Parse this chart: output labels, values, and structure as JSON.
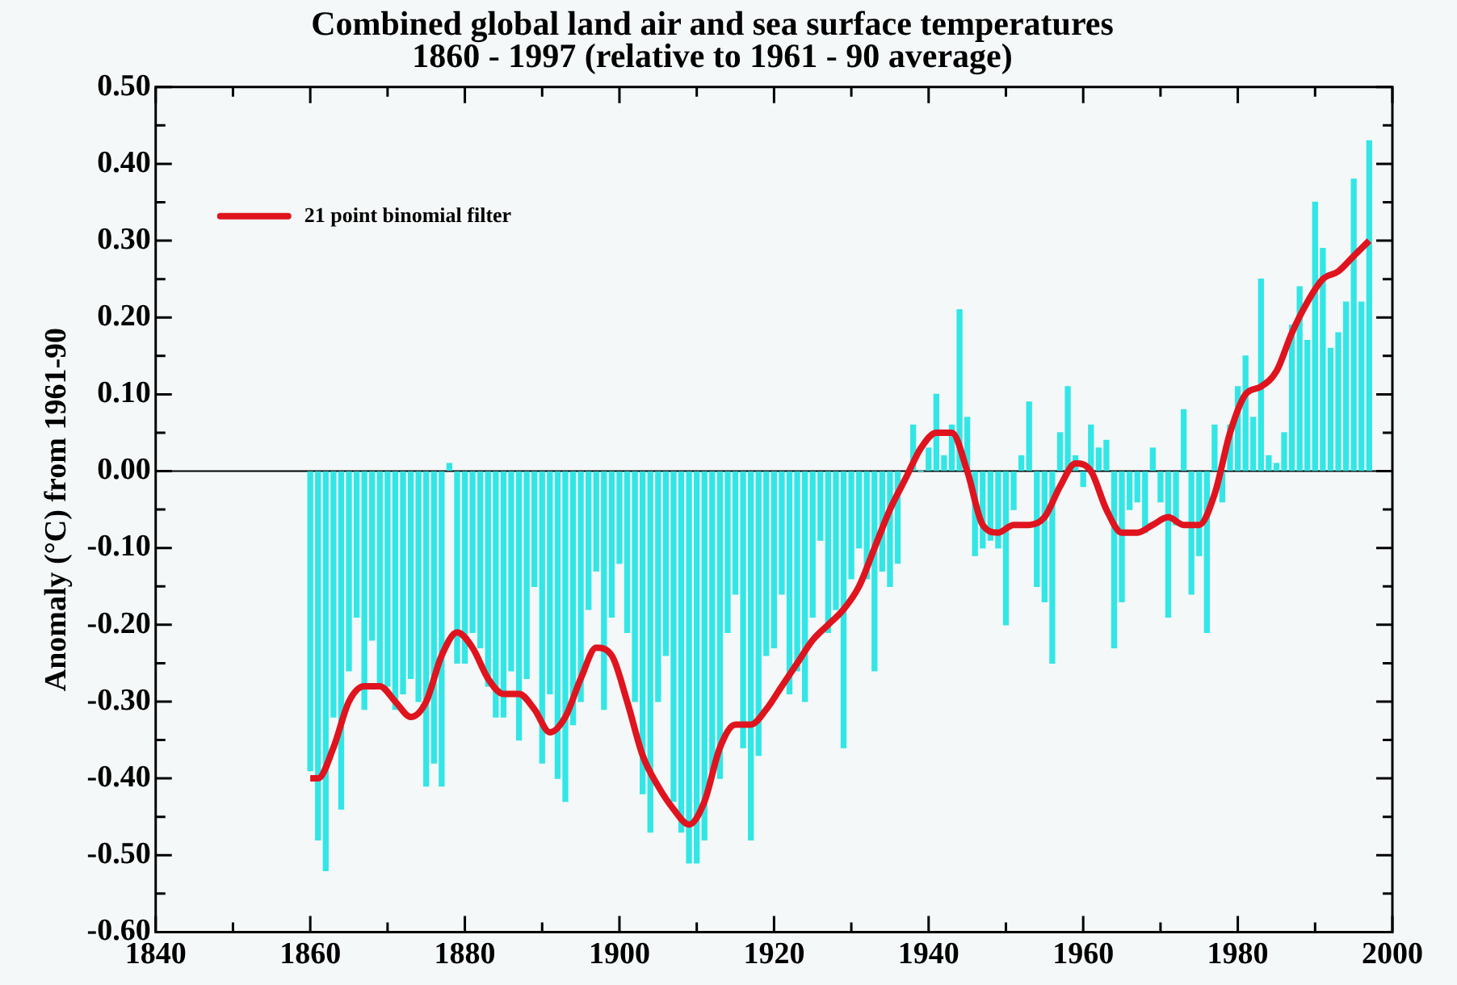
{
  "chart_data": {
    "type": "bar",
    "title": "Combined global land air and sea surface temperatures\n1860 - 1997 (relative to 1961 - 90 average)",
    "ylabel": "Anomaly (°C) from 1961-90",
    "xlim": [
      1840,
      2000
    ],
    "xticks": [
      1840,
      {
        "value": 1850,
        "label": null
      },
      1860,
      {
        "value": 1870,
        "label": null
      },
      1880,
      {
        "value": 1890,
        "label": null
      },
      1900,
      {
        "value": 1910,
        "label": null
      },
      1920,
      {
        "value": 1930,
        "label": null
      },
      1940,
      {
        "value": 1950,
        "label": null
      },
      1960,
      {
        "value": 1970,
        "label": null
      },
      1980,
      {
        "value": 1990,
        "label": null
      },
      2000
    ],
    "ylim": [
      -0.6,
      0.5
    ],
    "yticks": [
      {
        "value": -0.6,
        "label": "-0.60"
      },
      {
        "value": -0.55,
        "label": null
      },
      {
        "value": -0.5,
        "label": "-0.50"
      },
      {
        "value": -0.45,
        "label": null
      },
      {
        "value": -0.4,
        "label": "-0.40"
      },
      {
        "value": -0.35,
        "label": null
      },
      {
        "value": -0.3,
        "label": "-0.30"
      },
      {
        "value": -0.25,
        "label": null
      },
      {
        "value": -0.2,
        "label": "-0.20"
      },
      {
        "value": -0.15,
        "label": null
      },
      {
        "value": -0.1,
        "label": "-0.10"
      },
      {
        "value": -0.05,
        "label": null
      },
      {
        "value": 0,
        "label": "0.00"
      },
      {
        "value": 0.05,
        "label": null
      },
      {
        "value": 0.1,
        "label": "0.10"
      },
      {
        "value": 0.15,
        "label": null
      },
      {
        "value": 0.2,
        "label": "0.20"
      },
      {
        "value": 0.25,
        "label": null
      },
      {
        "value": 0.3,
        "label": "0.30"
      },
      {
        "value": 0.35,
        "label": null
      },
      {
        "value": 0.4,
        "label": "0.40"
      },
      {
        "value": 0.45,
        "label": null
      },
      {
        "value": 0.5,
        "label": "0.50"
      }
    ],
    "grid": false,
    "legend": "top left",
    "ref_lines": [
      {
        "axis": "y",
        "value": 0,
        "color": "#000000"
      }
    ],
    "series": [
      {
        "color": "#33e6e6",
        "x": [
          1860,
          1861,
          1862,
          1863,
          1864,
          1865,
          1866,
          1867,
          1868,
          1869,
          1870,
          1871,
          1872,
          1873,
          1874,
          1875,
          1876,
          1877,
          1878,
          1879,
          1880,
          1881,
          1882,
          1883,
          1884,
          1885,
          1886,
          1887,
          1888,
          1889,
          1890,
          1891,
          1892,
          1893,
          1894,
          1895,
          1896,
          1897,
          1898,
          1899,
          1900,
          1901,
          1902,
          1903,
          1904,
          1905,
          1906,
          1907,
          1908,
          1909,
          1910,
          1911,
          1912,
          1913,
          1914,
          1915,
          1916,
          1917,
          1918,
          1919,
          1920,
          1921,
          1922,
          1923,
          1924,
          1925,
          1926,
          1927,
          1928,
          1929,
          1930,
          1931,
          1932,
          1933,
          1934,
          1935,
          1936,
          1937,
          1938,
          1939,
          1940,
          1941,
          1942,
          1943,
          1944,
          1945,
          1946,
          1947,
          1948,
          1949,
          1950,
          1951,
          1952,
          1953,
          1954,
          1955,
          1956,
          1957,
          1958,
          1959,
          1960,
          1961,
          1962,
          1963,
          1964,
          1965,
          1966,
          1967,
          1968,
          1969,
          1970,
          1971,
          1972,
          1973,
          1974,
          1975,
          1976,
          1977,
          1978,
          1979,
          1980,
          1981,
          1982,
          1983,
          1984,
          1985,
          1986,
          1987,
          1988,
          1989,
          1990,
          1991,
          1992,
          1993,
          1994,
          1995,
          1996,
          1997
        ],
        "values": [
          -0.39,
          -0.48,
          -0.52,
          -0.32,
          -0.44,
          -0.26,
          -0.19,
          -0.31,
          -0.22,
          -0.28,
          -0.28,
          -0.31,
          -0.29,
          -0.27,
          -0.3,
          -0.41,
          -0.38,
          -0.41,
          0.01,
          -0.25,
          -0.25,
          -0.21,
          -0.23,
          -0.28,
          -0.32,
          -0.32,
          -0.26,
          -0.35,
          -0.27,
          -0.15,
          -0.38,
          -0.29,
          -0.4,
          -0.43,
          -0.33,
          -0.3,
          -0.18,
          -0.13,
          -0.31,
          -0.19,
          -0.12,
          -0.21,
          -0.3,
          -0.42,
          -0.47,
          -0.3,
          -0.24,
          -0.43,
          -0.47,
          -0.51,
          -0.51,
          -0.48,
          -0.39,
          -0.4,
          -0.21,
          -0.16,
          -0.36,
          -0.48,
          -0.37,
          -0.24,
          -0.23,
          -0.16,
          -0.29,
          -0.26,
          -0.3,
          -0.19,
          -0.09,
          -0.21,
          -0.18,
          -0.36,
          -0.14,
          -0.1,
          -0.14,
          -0.26,
          -0.13,
          -0.15,
          -0.12,
          null,
          0.06,
          0,
          0.03,
          0.1,
          0.02,
          0.06,
          0.21,
          0.07,
          -0.11,
          -0.1,
          -0.09,
          -0.1,
          -0.2,
          -0.05,
          0.02,
          0.09,
          -0.15,
          -0.17,
          -0.25,
          0.05,
          0.11,
          0.02,
          -0.02,
          0.06,
          0.03,
          0.04,
          -0.23,
          -0.17,
          -0.05,
          -0.04,
          -0.08,
          0.03,
          -0.04,
          -0.19,
          -0.07,
          0.08,
          -0.16,
          -0.11,
          -0.21,
          0.06,
          -0.04,
          0.06,
          0.11,
          0.15,
          0.07,
          0.25,
          0.02,
          0.01,
          0.05,
          0.19,
          0.24,
          0.17,
          0.35,
          0.29,
          0.16,
          0.18,
          0.22,
          0.38,
          0.22,
          0.43
        ]
      },
      {
        "type": "line",
        "name": "21 point binomial filter",
        "color": "#e0141e",
        "x": [
          1860,
          1861,
          1863,
          1865,
          1867,
          1869,
          1871,
          1873,
          1875,
          1877,
          1879,
          1881,
          1883,
          1885,
          1887,
          1889,
          1891,
          1893,
          1895,
          1897,
          1899,
          1901,
          1903,
          1905,
          1907,
          1909,
          1911,
          1913,
          1915,
          1917,
          1919,
          1921,
          1923,
          1925,
          1927,
          1929,
          1931,
          1933,
          1935,
          1937,
          1939,
          1941,
          1943,
          1945,
          1947,
          1949,
          1951,
          1953,
          1955,
          1957,
          1959,
          1961,
          1963,
          1965,
          1967,
          1969,
          1971,
          1973,
          1975,
          1977,
          1979,
          1981,
          1983,
          1985,
          1987,
          1989,
          1991,
          1993,
          1995,
          1997
        ],
        "values": [
          -0.4,
          -0.4,
          -0.36,
          -0.3,
          -0.28,
          -0.28,
          -0.3,
          -0.32,
          -0.3,
          -0.24,
          -0.21,
          -0.23,
          -0.27,
          -0.29,
          -0.29,
          -0.31,
          -0.34,
          -0.32,
          -0.27,
          -0.23,
          -0.24,
          -0.3,
          -0.37,
          -0.41,
          -0.44,
          -0.46,
          -0.43,
          -0.36,
          -0.33,
          -0.33,
          -0.31,
          -0.28,
          -0.25,
          -0.22,
          -0.2,
          -0.18,
          -0.15,
          -0.1,
          -0.05,
          -0.01,
          0.03,
          0.05,
          0.05,
          0,
          -0.07,
          -0.08,
          -0.07,
          -0.07,
          -0.06,
          -0.02,
          0.01,
          0,
          -0.05,
          -0.08,
          -0.08,
          -0.07,
          -0.06,
          -0.07,
          -0.07,
          -0.03,
          0.05,
          0.1,
          0.11,
          0.13,
          0.18,
          0.22,
          0.25,
          0.26,
          0.28,
          0.3
        ]
      }
    ]
  }
}
